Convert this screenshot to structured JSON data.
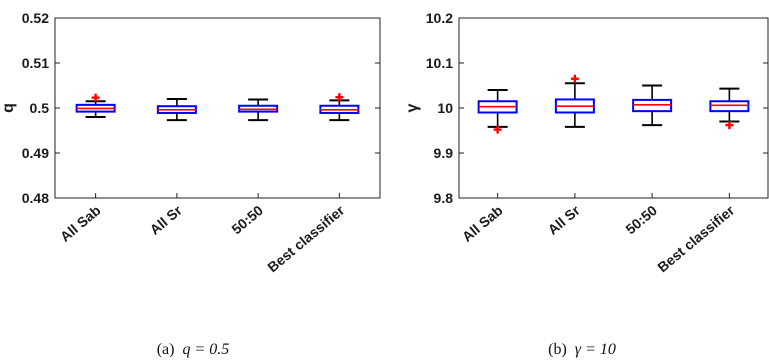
{
  "chart_data": [
    {
      "type": "box",
      "caption": "(a)",
      "caption_math": "q = 0.5",
      "ylabel": "q",
      "ylim": [
        0.48,
        0.52
      ],
      "yticks": [
        "0.48",
        "0.49",
        "0.5",
        "0.51",
        "0.52"
      ],
      "categories": [
        "All Sab",
        "All Sr",
        "50:50",
        "Best classifier"
      ],
      "boxes": [
        {
          "whisker_low": 0.498,
          "q1": 0.4992,
          "median": 0.4999,
          "q3": 0.5007,
          "whisker_high": 0.5015,
          "outliers": [
            0.5023
          ]
        },
        {
          "whisker_low": 0.4973,
          "q1": 0.4989,
          "median": 0.4996,
          "q3": 0.5004,
          "whisker_high": 0.502,
          "outliers": []
        },
        {
          "whisker_low": 0.4973,
          "q1": 0.4992,
          "median": 0.4997,
          "q3": 0.5005,
          "whisker_high": 0.5019,
          "outliers": []
        },
        {
          "whisker_low": 0.4973,
          "q1": 0.4989,
          "median": 0.4996,
          "q3": 0.5005,
          "whisker_high": 0.5017,
          "outliers": [
            0.5024
          ]
        }
      ],
      "grid": false,
      "colors": {
        "box": "#0000ff",
        "median": "#ff0000",
        "outlier": "#ff0000",
        "whisker": "#000000"
      }
    },
    {
      "type": "box",
      "caption": "(b)",
      "caption_math": "γ = 10",
      "ylabel": "γ",
      "ylim": [
        9.8,
        10.2
      ],
      "yticks": [
        "9.8",
        "9.9",
        "10",
        "10.1",
        "10.2"
      ],
      "categories": [
        "All Sab",
        "All Sr",
        "50:50",
        "Best classifier"
      ],
      "boxes": [
        {
          "whisker_low": 9.958,
          "q1": 9.99,
          "median": 10.003,
          "q3": 10.015,
          "whisker_high": 10.04,
          "outliers": [
            9.952
          ]
        },
        {
          "whisker_low": 9.958,
          "q1": 9.99,
          "median": 10.004,
          "q3": 10.019,
          "whisker_high": 10.055,
          "outliers": [
            10.065
          ]
        },
        {
          "whisker_low": 9.962,
          "q1": 9.993,
          "median": 10.007,
          "q3": 10.018,
          "whisker_high": 10.05,
          "outliers": []
        },
        {
          "whisker_low": 9.97,
          "q1": 9.993,
          "median": 10.006,
          "q3": 10.015,
          "whisker_high": 10.043,
          "outliers": [
            9.962
          ]
        }
      ],
      "grid": false,
      "colors": {
        "box": "#0000ff",
        "median": "#ff0000",
        "outlier": "#ff0000",
        "whisker": "#000000"
      }
    }
  ]
}
